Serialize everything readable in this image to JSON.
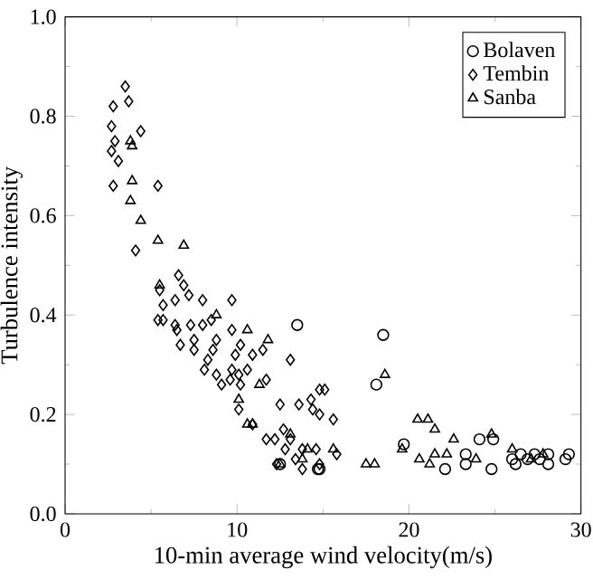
{
  "chart_data": {
    "type": "scatter",
    "xlabel": "10-min average wind velocity(m/s)",
    "ylabel": "Turbulence intensity",
    "xlim": [
      0,
      30
    ],
    "xticks": [
      0,
      10,
      20,
      30
    ],
    "ylim": [
      0,
      1
    ],
    "yticks": [
      {
        "value": 0,
        "label": "0.0"
      },
      {
        "value": 0.2,
        "label": "0.2"
      },
      {
        "value": 0.4,
        "label": "0.4"
      },
      {
        "value": 0.6,
        "label": "0.6"
      },
      {
        "value": 0.8,
        "label": "0.8"
      },
      {
        "value": 1,
        "label": "1.0"
      }
    ],
    "legend": "top right",
    "grid": false,
    "series": [
      {
        "name": "Bolaven",
        "color": "#000000",
        "marker": "circle",
        "x": [
          13.5,
          14.8,
          12.5,
          18.5,
          18.1,
          19.7,
          22.1,
          23.3,
          23.3,
          24.1,
          24.8,
          24.9,
          26.0,
          26.5,
          26.2,
          27.3,
          27.6,
          28.1,
          28.1,
          29.1,
          29.3,
          26.9,
          14.7
        ],
        "values": [
          0.38,
          0.09,
          0.1,
          0.36,
          0.26,
          0.14,
          0.09,
          0.12,
          0.1,
          0.15,
          0.09,
          0.15,
          0.11,
          0.12,
          0.1,
          0.12,
          0.11,
          0.12,
          0.1,
          0.11,
          0.12,
          0.11,
          0.09
        ]
      },
      {
        "name": "Tembin",
        "color": "#000000",
        "marker": "diamond",
        "x": [
          3.5,
          2.8,
          3.7,
          2.7,
          4.4,
          2.9,
          2.7,
          3.1,
          2.8,
          5.4,
          4.1,
          6.6,
          6.9,
          5.5,
          5.7,
          6.4,
          7.2,
          8.0,
          9.7,
          5.4,
          5.7,
          6.4,
          7.3,
          8.0,
          8.5,
          6.5,
          7.5,
          6.7,
          7.5,
          9.7,
          8.8,
          10.2,
          10.9,
          9.9,
          8.3,
          8.6,
          11.5,
          13.1,
          8.1,
          10.6,
          8.8,
          9.7,
          9.1,
          9.6,
          10.1,
          10.2,
          11.7,
          14.8,
          10.1,
          14.4,
          13.6,
          14.8,
          12.5,
          10.9,
          11.7,
          12.2,
          12.7,
          13.1,
          12.8,
          13.8,
          14.6,
          13.4,
          13.8,
          12.3,
          14.8,
          15.1,
          15.6,
          14.3,
          15.8
        ],
        "values": [
          0.86,
          0.82,
          0.83,
          0.78,
          0.77,
          0.75,
          0.73,
          0.71,
          0.66,
          0.66,
          0.53,
          0.48,
          0.46,
          0.45,
          0.42,
          0.43,
          0.44,
          0.43,
          0.43,
          0.39,
          0.39,
          0.38,
          0.38,
          0.38,
          0.39,
          0.37,
          0.35,
          0.34,
          0.33,
          0.37,
          0.35,
          0.34,
          0.32,
          0.32,
          0.31,
          0.33,
          0.33,
          0.31,
          0.29,
          0.29,
          0.28,
          0.29,
          0.26,
          0.27,
          0.28,
          0.26,
          0.27,
          0.25,
          0.21,
          0.21,
          0.22,
          0.2,
          0.22,
          0.18,
          0.15,
          0.15,
          0.17,
          0.15,
          0.13,
          0.13,
          0.13,
          0.11,
          0.09,
          0.1,
          0.1,
          0.25,
          0.19,
          0.23,
          0.12
        ]
      },
      {
        "name": "Sanba",
        "color": "#000000",
        "marker": "triangle",
        "x": [
          3.8,
          3.9,
          3.9,
          3.8,
          4.4,
          5.4,
          6.9,
          5.5,
          8.8,
          10.6,
          11.8,
          11.3,
          10.1,
          10.6,
          10.9,
          13.1,
          14.1,
          12.5,
          13.8,
          18.6,
          20.5,
          21.1,
          21.5,
          22.6,
          24.8,
          26.0,
          19.6,
          17.5,
          18.0,
          20.6,
          21.5,
          21.2,
          22.2,
          23.9,
          27.1,
          27.8,
          15.6
        ],
        "values": [
          0.75,
          0.74,
          0.67,
          0.63,
          0.59,
          0.55,
          0.54,
          0.46,
          0.4,
          0.37,
          0.35,
          0.26,
          0.23,
          0.18,
          0.18,
          0.16,
          0.13,
          0.1,
          0.11,
          0.28,
          0.19,
          0.19,
          0.17,
          0.15,
          0.16,
          0.13,
          0.13,
          0.1,
          0.1,
          0.11,
          0.12,
          0.1,
          0.12,
          0.11,
          0.11,
          0.12,
          0.13
        ]
      }
    ]
  }
}
